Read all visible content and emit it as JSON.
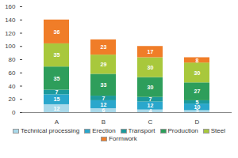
{
  "chart_data": {
    "type": "bar",
    "stacked": true,
    "data_labels": true,
    "grid": false,
    "categories": [
      "A",
      "B",
      "C",
      "D"
    ],
    "series": [
      {
        "name": "Technical processing",
        "color": "#a9d9ea",
        "values": [
          12,
          6,
          4,
          3
        ]
      },
      {
        "name": "Erection",
        "color": "#2aa7cc",
        "values": [
          15,
          12,
          12,
          10
        ]
      },
      {
        "name": "Transport",
        "color": "#1c9a9c",
        "values": [
          7,
          7,
          7,
          5
        ]
      },
      {
        "name": "Production",
        "color": "#2e9e5b",
        "values": [
          35,
          33,
          30,
          27
        ]
      },
      {
        "name": "Steel",
        "color": "#a8c83c",
        "values": [
          35,
          29,
          30,
          30
        ]
      },
      {
        "name": "Formwork",
        "color": "#f07d28",
        "values": [
          36,
          23,
          17,
          8
        ]
      }
    ],
    "ylim": [
      0,
      160
    ],
    "yticks": [
      0,
      20,
      40,
      60,
      80,
      100,
      120,
      140,
      160
    ],
    "legend": "bottom"
  }
}
